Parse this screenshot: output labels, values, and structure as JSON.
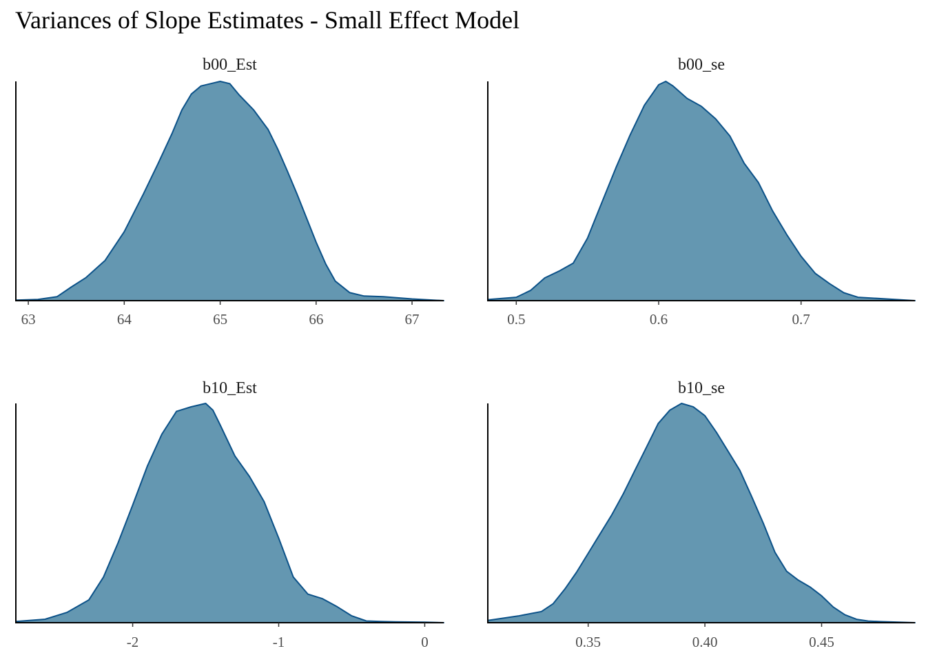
{
  "title": "Variances of Slope Estimates - Small Effect Model",
  "colors": {
    "fill": "#6497B1",
    "line": "#0B5188",
    "axis": "#000000"
  },
  "chart_data": [
    {
      "type": "area",
      "panel": "b00_Est",
      "xlim": [
        62.87,
        67.33
      ],
      "ticks": [
        63,
        64,
        65,
        66,
        67
      ],
      "tick_labels": [
        "63",
        "64",
        "65",
        "66",
        "67"
      ],
      "x": [
        62.87,
        63.1,
        63.3,
        63.45,
        63.6,
        63.8,
        64.0,
        64.2,
        64.35,
        64.5,
        64.6,
        64.7,
        64.8,
        64.9,
        65.0,
        65.1,
        65.2,
        65.35,
        65.5,
        65.6,
        65.7,
        65.8,
        65.9,
        66.0,
        66.1,
        66.2,
        66.35,
        66.5,
        66.7,
        67.0,
        67.33
      ],
      "y": [
        0.5,
        1.0,
        3.5,
        12,
        20,
        35,
        60,
        93,
        119,
        146,
        166,
        180,
        187,
        189,
        191,
        189,
        179,
        166,
        149,
        132,
        113,
        93,
        72,
        51,
        32,
        17,
        7,
        4,
        3.5,
        1.5,
        0
      ]
    },
    {
      "type": "area",
      "panel": "b00_se",
      "xlim": [
        0.48,
        0.78
      ],
      "ticks": [
        0.5,
        0.6,
        0.7
      ],
      "tick_labels": [
        "0.5",
        "0.6",
        "0.7"
      ],
      "x": [
        0.48,
        0.5,
        0.51,
        0.52,
        0.53,
        0.54,
        0.55,
        0.56,
        0.57,
        0.58,
        0.59,
        0.6,
        0.605,
        0.61,
        0.62,
        0.63,
        0.64,
        0.65,
        0.66,
        0.67,
        0.68,
        0.69,
        0.7,
        0.71,
        0.72,
        0.73,
        0.74,
        0.78
      ],
      "y": [
        1,
        3,
        9,
        20,
        26,
        33,
        55,
        86,
        117,
        146,
        172,
        190,
        193,
        189,
        178,
        171,
        160,
        145,
        121,
        104,
        79,
        58,
        39,
        24,
        15,
        7,
        3,
        0
      ]
    },
    {
      "type": "area",
      "panel": "b10_Est",
      "xlim": [
        -2.8,
        0.13
      ],
      "ticks": [
        -2,
        -1,
        0
      ],
      "tick_labels": [
        "-2",
        "-1",
        "0"
      ],
      "x": [
        -2.8,
        -2.6,
        -2.45,
        -2.3,
        -2.2,
        -2.1,
        -2.0,
        -1.9,
        -1.8,
        -1.7,
        -1.6,
        -1.5,
        -1.45,
        -1.4,
        -1.3,
        -1.2,
        -1.1,
        -1.0,
        -0.9,
        -0.8,
        -0.7,
        -0.6,
        -0.5,
        -0.4,
        -0.3,
        -0.2,
        0.0,
        0.13
      ],
      "y": [
        1,
        3,
        9,
        20,
        40,
        70,
        103,
        137,
        165,
        185,
        189,
        192,
        186,
        173,
        146,
        128,
        106,
        74,
        40,
        25,
        21,
        14,
        6,
        1.5,
        1,
        0.8,
        0.5,
        0
      ]
    },
    {
      "type": "area",
      "panel": "b10_se",
      "xlim": [
        0.307,
        0.49
      ],
      "ticks": [
        0.35,
        0.4,
        0.45
      ],
      "tick_labels": [
        "0.35",
        "0.40",
        "0.45"
      ],
      "x": [
        0.307,
        0.32,
        0.33,
        0.335,
        0.34,
        0.345,
        0.35,
        0.355,
        0.36,
        0.365,
        0.37,
        0.375,
        0.38,
        0.385,
        0.39,
        0.395,
        0.4,
        0.405,
        0.41,
        0.415,
        0.42,
        0.425,
        0.43,
        0.435,
        0.44,
        0.445,
        0.45,
        0.455,
        0.46,
        0.465,
        0.47,
        0.475,
        0.49
      ],
      "y": [
        2,
        6,
        10,
        17,
        30,
        45,
        62,
        79,
        96,
        115,
        136,
        157,
        178,
        190,
        196,
        193,
        185,
        170,
        153,
        136,
        113,
        89,
        63,
        46,
        38,
        32,
        24,
        14,
        7,
        3,
        1.5,
        1,
        0
      ]
    }
  ]
}
